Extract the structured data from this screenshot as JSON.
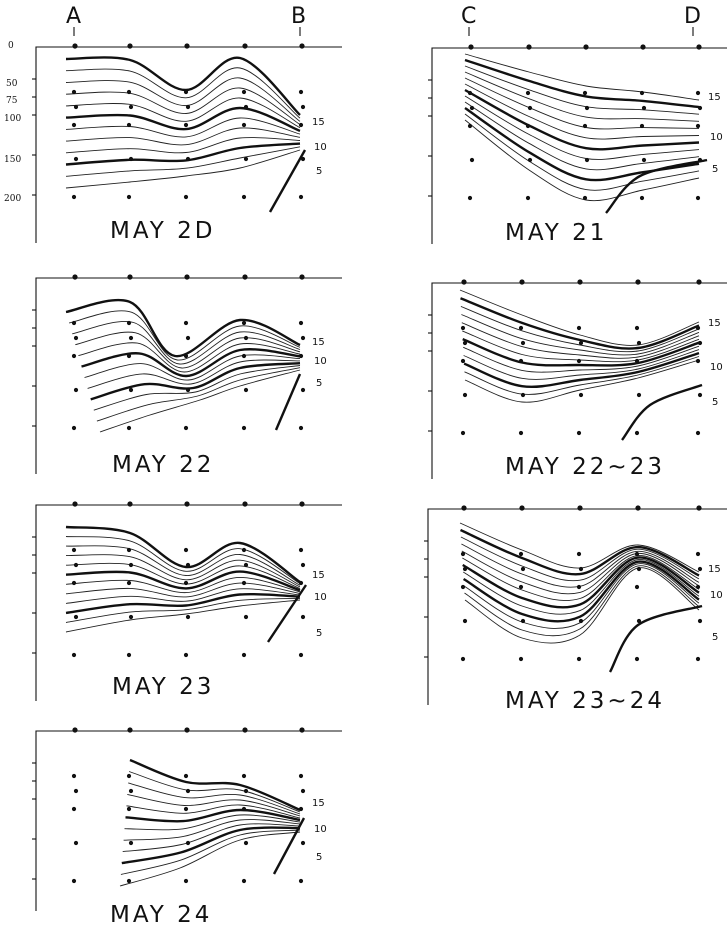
{
  "stations": {
    "a": "A",
    "b": "B",
    "c": "C",
    "d": "D"
  },
  "depth_ticks": [
    "0",
    "50",
    "75",
    "100",
    "150",
    "200"
  ],
  "panels": [
    {
      "id": "may20",
      "title": "MAY 2D",
      "labels": [
        "15",
        "10",
        "5"
      ]
    },
    {
      "id": "may21",
      "title": "MAY 21",
      "labels": [
        "15",
        "10",
        "5"
      ]
    },
    {
      "id": "may22",
      "title": "MAY 22",
      "labels": [
        "15",
        "10",
        "5"
      ]
    },
    {
      "id": "may2223",
      "title": "MAY 22~23",
      "labels": [
        "15",
        "10",
        "5"
      ]
    },
    {
      "id": "may23",
      "title": "MAY 23",
      "labels": [
        "15",
        "10",
        "5"
      ]
    },
    {
      "id": "may2324",
      "title": "MAY 23~24",
      "labels": [
        "15",
        "10",
        "5"
      ]
    },
    {
      "id": "may24",
      "title": "MAY 24",
      "labels": [
        "15",
        "10",
        "5"
      ]
    }
  ]
}
